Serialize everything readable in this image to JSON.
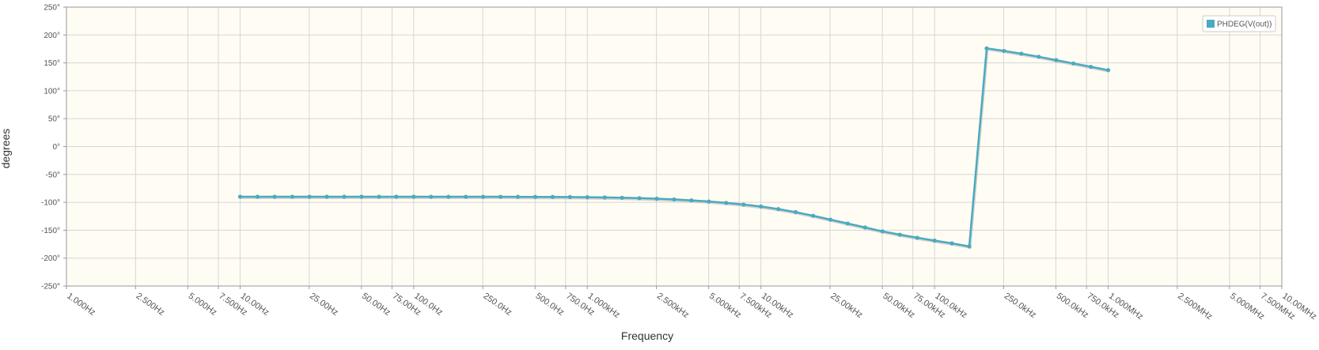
{
  "chart_data": {
    "type": "line",
    "xlabel": "Frequency",
    "ylabel": "degrees",
    "x_scale": "log",
    "xlim_hz": [
      1,
      10000000
    ],
    "ylim": [
      -250,
      250
    ],
    "grid": true,
    "legend_position": "top-right",
    "y_ticks": [
      {
        "value": 250,
        "label": "250°"
      },
      {
        "value": 200,
        "label": "200°"
      },
      {
        "value": 150,
        "label": "150°"
      },
      {
        "value": 100,
        "label": "100°"
      },
      {
        "value": 50,
        "label": "50°"
      },
      {
        "value": 0,
        "label": "0°"
      },
      {
        "value": -50,
        "label": "-50°"
      },
      {
        "value": -100,
        "label": "-100°"
      },
      {
        "value": -150,
        "label": "-150°"
      },
      {
        "value": -200,
        "label": "-200°"
      },
      {
        "value": -250,
        "label": "-250°"
      }
    ],
    "x_ticks": [
      {
        "value": 1,
        "label": "1.000Hz"
      },
      {
        "value": 2.5,
        "label": "2.500Hz"
      },
      {
        "value": 5,
        "label": "5.000Hz"
      },
      {
        "value": 7.5,
        "label": "7.500Hz"
      },
      {
        "value": 10,
        "label": "10.00Hz"
      },
      {
        "value": 25,
        "label": "25.00Hz"
      },
      {
        "value": 50,
        "label": "50.00Hz"
      },
      {
        "value": 75,
        "label": "75.00Hz"
      },
      {
        "value": 100,
        "label": "100.0Hz"
      },
      {
        "value": 250,
        "label": "250.0Hz"
      },
      {
        "value": 500,
        "label": "500.0Hz"
      },
      {
        "value": 750,
        "label": "750.0Hz"
      },
      {
        "value": 1000,
        "label": "1.000kHz"
      },
      {
        "value": 2500,
        "label": "2.500kHz"
      },
      {
        "value": 5000,
        "label": "5.000kHz"
      },
      {
        "value": 7500,
        "label": "7.500kHz"
      },
      {
        "value": 10000,
        "label": "10.00kHz"
      },
      {
        "value": 25000,
        "label": "25.00kHz"
      },
      {
        "value": 50000,
        "label": "50.00kHz"
      },
      {
        "value": 75000,
        "label": "75.00kHz"
      },
      {
        "value": 100000,
        "label": "100.0kHz"
      },
      {
        "value": 250000,
        "label": "250.0kHz"
      },
      {
        "value": 500000,
        "label": "500.0kHz"
      },
      {
        "value": 750000,
        "label": "750.0kHz"
      },
      {
        "value": 1000000,
        "label": "1.000MHz"
      },
      {
        "value": 2500000,
        "label": "2.500MHz"
      },
      {
        "value": 5000000,
        "label": "5.000MHz"
      },
      {
        "value": 7500000,
        "label": "7.500MHz"
      },
      {
        "value": 10000000,
        "label": "10.00MHz"
      }
    ],
    "series": [
      {
        "name": "PHDEG(V(out))",
        "color": "#4aaabf",
        "points": [
          [
            10,
            -89.9
          ],
          [
            12.6,
            -89.9
          ],
          [
            15.8,
            -89.9
          ],
          [
            20,
            -89.9
          ],
          [
            25.1,
            -89.9
          ],
          [
            31.6,
            -89.9
          ],
          [
            39.8,
            -89.9
          ],
          [
            50.1,
            -89.9
          ],
          [
            63.1,
            -89.9
          ],
          [
            79.4,
            -89.9
          ],
          [
            100,
            -89.9
          ],
          [
            125.9,
            -90
          ],
          [
            158.5,
            -90
          ],
          [
            199.5,
            -90
          ],
          [
            251.2,
            -90
          ],
          [
            316.2,
            -90
          ],
          [
            398.1,
            -90.1
          ],
          [
            501.2,
            -90.2
          ],
          [
            631,
            -90.3
          ],
          [
            794.3,
            -90.5
          ],
          [
            1000,
            -90.8
          ],
          [
            1258.9,
            -91.2
          ],
          [
            1584.9,
            -91.8
          ],
          [
            1995.3,
            -92.5
          ],
          [
            2511.9,
            -93.5
          ],
          [
            3162.3,
            -94.8
          ],
          [
            3981.1,
            -96.5
          ],
          [
            5011.9,
            -98.5
          ],
          [
            6309.6,
            -101
          ],
          [
            7943.3,
            -104
          ],
          [
            10000,
            -107.5
          ],
          [
            12589,
            -112
          ],
          [
            15849,
            -117.5
          ],
          [
            19953,
            -124
          ],
          [
            25119,
            -131
          ],
          [
            31623,
            -138
          ],
          [
            39811,
            -145
          ],
          [
            50119,
            -152
          ],
          [
            63096,
            -158
          ],
          [
            79433,
            -163.5
          ],
          [
            100000,
            -168.5
          ],
          [
            125893,
            -173.5
          ],
          [
            158489,
            -179
          ],
          [
            199526,
            176
          ],
          [
            251189,
            171.5
          ],
          [
            316228,
            166.5
          ],
          [
            398107,
            161
          ],
          [
            501187,
            155
          ],
          [
            630957,
            149
          ],
          [
            794328,
            143
          ],
          [
            1000000,
            137
          ]
        ]
      }
    ]
  }
}
